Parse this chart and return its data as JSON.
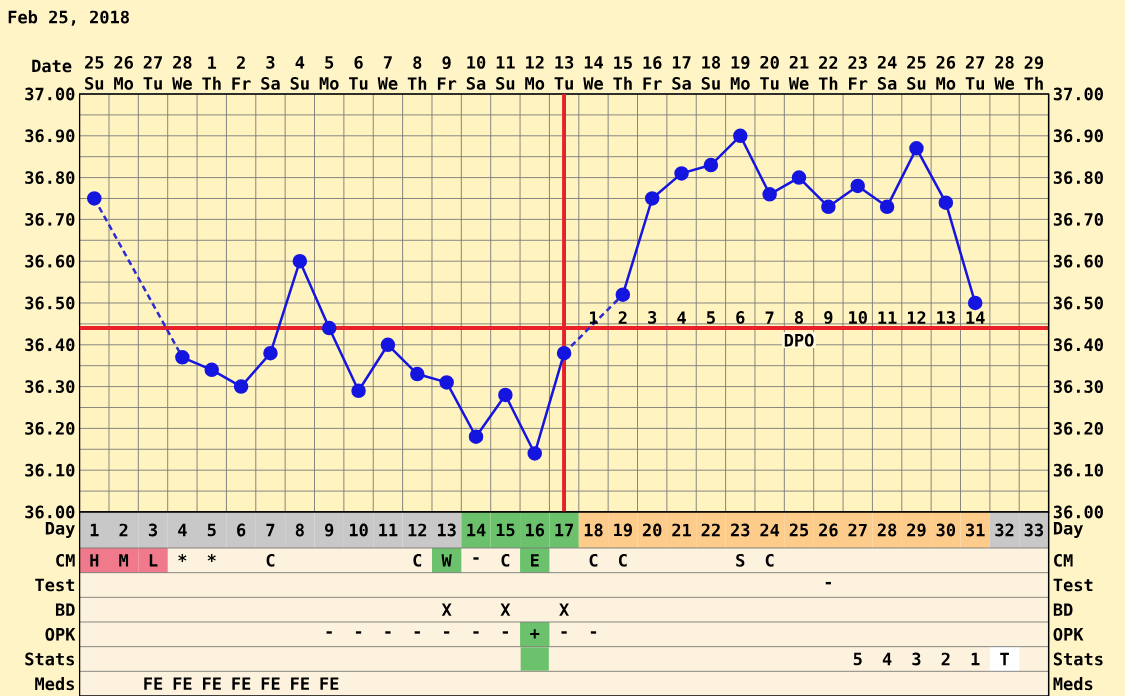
{
  "chart_data": [
    {
      "type": "line",
      "title": "Feb 25, 2018",
      "xlabel": "Date",
      "categories": [
        "25 Su",
        "26 Mo",
        "27 Tu",
        "28 We",
        "1 Th",
        "2 Fr",
        "3 Sa",
        "4 Su",
        "5 Mo",
        "6 Tu",
        "7 We",
        "8 Th",
        "9 Fr",
        "10 Sa",
        "11 Su",
        "12 Mo",
        "13 Tu",
        "14 We",
        "15 Th",
        "16 Fr",
        "17 Sa",
        "18 Su",
        "19 Mo",
        "20 Tu",
        "21 We",
        "22 Th",
        "23 Fr",
        "24 Sa",
        "25 Su",
        "26 Mo",
        "27 Tu",
        "28 We",
        "29 Th"
      ],
      "ylim": [
        36.0,
        37.0
      ],
      "yticks": [
        {
          "value": 36.0,
          "label": "36.00"
        },
        {
          "value": 36.05,
          "label": null
        },
        {
          "value": 36.1,
          "label": "36.10"
        },
        {
          "value": 36.15,
          "label": null
        },
        {
          "value": 36.2,
          "label": "36.20"
        },
        {
          "value": 36.25,
          "label": null
        },
        {
          "value": 36.3,
          "label": "36.30"
        },
        {
          "value": 36.35,
          "label": null
        },
        {
          "value": 36.4,
          "label": "36.40"
        },
        {
          "value": 36.45,
          "label": null
        },
        {
          "value": 36.5,
          "label": "36.50"
        },
        {
          "value": 36.55,
          "label": null
        },
        {
          "value": 36.6,
          "label": "36.60"
        },
        {
          "value": 36.65,
          "label": null
        },
        {
          "value": 36.7,
          "label": "36.70"
        },
        {
          "value": 36.75,
          "label": null
        },
        {
          "value": 36.8,
          "label": "36.80"
        },
        {
          "value": 36.85,
          "label": null
        },
        {
          "value": 36.9,
          "label": "36.90"
        },
        {
          "value": 36.95,
          "label": null
        },
        {
          "value": 37.0,
          "label": "37.00"
        }
      ],
      "y2lim": [
        36.0,
        37.0
      ],
      "y2ticks": [
        {
          "value": 36.0,
          "label": "36.00"
        },
        {
          "value": 36.05,
          "label": null
        },
        {
          "value": 36.1,
          "label": "36.10"
        },
        {
          "value": 36.15,
          "label": null
        },
        {
          "value": 36.2,
          "label": "36.20"
        },
        {
          "value": 36.25,
          "label": null
        },
        {
          "value": 36.3,
          "label": "36.30"
        },
        {
          "value": 36.35,
          "label": null
        },
        {
          "value": 36.4,
          "label": "36.40"
        },
        {
          "value": 36.45,
          "label": null
        },
        {
          "value": 36.5,
          "label": "36.50"
        },
        {
          "value": 36.55,
          "label": null
        },
        {
          "value": 36.6,
          "label": "36.60"
        },
        {
          "value": 36.65,
          "label": null
        },
        {
          "value": 36.7,
          "label": "36.70"
        },
        {
          "value": 36.75,
          "label": null
        },
        {
          "value": 36.8,
          "label": "36.80"
        },
        {
          "value": 36.85,
          "label": null
        },
        {
          "value": 36.9,
          "label": "36.90"
        },
        {
          "value": 36.95,
          "label": null
        },
        {
          "value": 37.0,
          "label": "37.00"
        }
      ],
      "grid": true,
      "marker": "circle",
      "line_style": "solid",
      "series": [
        {
          "color": "#1515E0",
          "values": [
            36.75,
            null,
            null,
            36.37,
            36.34,
            36.3,
            36.38,
            36.6,
            36.44,
            36.29,
            36.4,
            36.33,
            36.31,
            36.18,
            36.28,
            36.14,
            36.38,
            null,
            36.52,
            36.75,
            36.81,
            36.83,
            36.9,
            36.76,
            36.8,
            36.73,
            36.78,
            36.73,
            36.87,
            36.74,
            36.5,
            null,
            null
          ]
        },
        {
          "color": "#2B2BD2",
          "line_style": "dashed",
          "marker": "none",
          "values": [
            36.75,
            null,
            null,
            36.37,
            null,
            null,
            null,
            null,
            null,
            null,
            null,
            null,
            null,
            null,
            null,
            null,
            null,
            null,
            null,
            null,
            null,
            null,
            null,
            null,
            null,
            null,
            null,
            null,
            null,
            null,
            null,
            null,
            null
          ]
        },
        {
          "color": "#2B2BD2",
          "line_style": "dashed",
          "marker": "none",
          "values": [
            null,
            null,
            null,
            null,
            null,
            null,
            null,
            null,
            null,
            null,
            null,
            null,
            null,
            null,
            null,
            null,
            36.38,
            null,
            36.52,
            null,
            null,
            null,
            null,
            null,
            null,
            null,
            null,
            null,
            null,
            null,
            null,
            null,
            null
          ]
        }
      ],
      "ref_lines": [
        {
          "axis": "y",
          "value": 36.44,
          "color": "#E8202A",
          "label": "DPO"
        },
        {
          "axis": "x",
          "value": "13 Tu",
          "color": "#E8202A"
        }
      ],
      "annotations": [
        "1",
        "2",
        "3",
        "4",
        "5",
        "6",
        "7",
        "8",
        "9",
        "10",
        "11",
        "12",
        "13",
        "14"
      ]
    },
    {
      "type": "heatmap",
      "grid": true,
      "categories": [
        null,
        null,
        null,
        null,
        null,
        null,
        null,
        null,
        null,
        null,
        null,
        null,
        null,
        null,
        null,
        null,
        null,
        null,
        null,
        null,
        null,
        null,
        null,
        null,
        null,
        null,
        null,
        null,
        null,
        null,
        null,
        null,
        null
      ],
      "y_categories": [
        "Day",
        "CM",
        "Test",
        "BD",
        "OPK",
        "Stats",
        "Meds"
      ],
      "y2_categories": [
        "Day",
        "CM",
        "Test",
        "BD",
        "OPK",
        "Stats",
        "Meds"
      ],
      "cells": [
        [
          null,
          null,
          null,
          null,
          null,
          null,
          null,
          null,
          null,
          null,
          null,
          null,
          null,
          null,
          null,
          null,
          null,
          null,
          null,
          null,
          null,
          null,
          null,
          null,
          null,
          null,
          null,
          null,
          null,
          null,
          null,
          null,
          null
        ],
        [
          null,
          null,
          null,
          null,
          null,
          null,
          null,
          null,
          null,
          null,
          null,
          null,
          null,
          null,
          null,
          null,
          null,
          null,
          null,
          null,
          null,
          null,
          null,
          null,
          null,
          null,
          null,
          null,
          null,
          null,
          null,
          null,
          null
        ],
        [
          null,
          null,
          null,
          null,
          null,
          null,
          null,
          null,
          null,
          null,
          null,
          null,
          null,
          null,
          null,
          null,
          null,
          null,
          null,
          null,
          null,
          null,
          null,
          null,
          null,
          null,
          null,
          null,
          null,
          null,
          null,
          null,
          null
        ],
        [
          null,
          null,
          null,
          null,
          null,
          null,
          null,
          null,
          null,
          null,
          null,
          null,
          null,
          null,
          null,
          null,
          null,
          null,
          null,
          null,
          null,
          null,
          null,
          null,
          null,
          null,
          null,
          null,
          null,
          null,
          null,
          null,
          null
        ],
        [
          null,
          null,
          null,
          null,
          null,
          null,
          null,
          null,
          null,
          null,
          null,
          null,
          null,
          null,
          null,
          null,
          null,
          null,
          null,
          null,
          null,
          null,
          null,
          null,
          null,
          null,
          null,
          null,
          null,
          null,
          null,
          null,
          null
        ],
        [
          null,
          null,
          null,
          null,
          null,
          null,
          null,
          null,
          null,
          null,
          null,
          null,
          null,
          null,
          null,
          null,
          null,
          null,
          null,
          null,
          null,
          null,
          null,
          null,
          null,
          null,
          null,
          null,
          null,
          null,
          null,
          null,
          null
        ],
        [
          null,
          null,
          null,
          null,
          null,
          null,
          null,
          null,
          null,
          null,
          null,
          null,
          null,
          null,
          null,
          null,
          null,
          null,
          null,
          null,
          null,
          null,
          null,
          null,
          null,
          null,
          null,
          null,
          null,
          null,
          null,
          null,
          null
        ]
      ],
      "cell_labels": [
        [
          "1",
          "2",
          "3",
          "4",
          "5",
          "6",
          "7",
          "8",
          "9",
          "10",
          "11",
          "12",
          "13",
          "14",
          "15",
          "16",
          "17",
          "18",
          "19",
          "20",
          "21",
          "22",
          "23",
          "24",
          "25",
          "26",
          "27",
          "28",
          "29",
          "30",
          "31",
          "32",
          "33"
        ],
        [
          "H",
          "M",
          "L",
          "*",
          "*",
          null,
          "C",
          null,
          null,
          null,
          null,
          "C",
          "W",
          "-",
          "C",
          "E",
          null,
          "C",
          "C",
          null,
          null,
          null,
          "S",
          "C",
          null,
          null,
          null,
          null,
          null,
          null,
          null,
          null,
          null
        ],
        [
          null,
          null,
          null,
          null,
          null,
          null,
          null,
          null,
          null,
          null,
          null,
          null,
          null,
          null,
          null,
          null,
          null,
          null,
          null,
          null,
          null,
          null,
          null,
          null,
          null,
          "-",
          null,
          null,
          null,
          null,
          null,
          null,
          null
        ],
        [
          null,
          null,
          null,
          null,
          null,
          null,
          null,
          null,
          null,
          null,
          null,
          null,
          "X",
          null,
          "X",
          null,
          "X",
          null,
          null,
          null,
          null,
          null,
          null,
          null,
          null,
          null,
          null,
          null,
          null,
          null,
          null,
          null,
          null
        ],
        [
          null,
          null,
          null,
          null,
          null,
          null,
          null,
          null,
          "-",
          "-",
          "-",
          "-",
          "-",
          "-",
          "-",
          "+",
          "-",
          "-",
          null,
          null,
          null,
          null,
          null,
          null,
          null,
          null,
          null,
          null,
          null,
          null,
          null,
          null,
          null
        ],
        [
          null,
          null,
          null,
          null,
          null,
          null,
          null,
          null,
          null,
          null,
          null,
          null,
          null,
          null,
          null,
          null,
          null,
          null,
          null,
          null,
          null,
          null,
          null,
          null,
          null,
          null,
          "5",
          "4",
          "3",
          "2",
          "1",
          "T",
          null
        ],
        [
          null,
          null,
          "FE",
          "FE",
          "FE",
          "FE",
          "FE",
          "FE",
          "FE",
          null,
          null,
          null,
          null,
          null,
          null,
          null,
          null,
          null,
          null,
          null,
          null,
          null,
          null,
          null,
          null,
          null,
          null,
          null,
          null,
          null,
          null,
          null,
          null
        ]
      ],
      "colors": [
        [
          "#C8C8C8",
          "#C8C8C8",
          "#C8C8C8",
          "#C8C8C8",
          "#C8C8C8",
          "#C8C8C8",
          "#C8C8C8",
          "#C8C8C8",
          "#C8C8C8",
          "#C8C8C8",
          "#C8C8C8",
          "#C8C8C8",
          "#C8C8C8",
          "#6CC26C",
          "#6CC26C",
          "#6CC26C",
          "#6CC26C",
          "#FDCB8A",
          "#FDCB8A",
          "#FDCB8A",
          "#FDCB8A",
          "#FDCB8A",
          "#FDCB8A",
          "#FDCB8A",
          "#FDCB8A",
          "#FDCB8A",
          "#FDCB8A",
          "#FDCB8A",
          "#FDCB8A",
          "#FDCB8A",
          "#FDCB8A",
          "#C8C8C8",
          "#C8C8C8"
        ],
        [
          "#F07A8C",
          "#F07A8C",
          "#F07A8C",
          null,
          null,
          null,
          null,
          null,
          null,
          null,
          null,
          null,
          "#6CC26C",
          null,
          null,
          "#6CC26C",
          null,
          null,
          null,
          null,
          null,
          null,
          null,
          null,
          null,
          null,
          null,
          null,
          null,
          null,
          null,
          null,
          null
        ],
        [
          null,
          null,
          null,
          null,
          null,
          null,
          null,
          null,
          null,
          null,
          null,
          null,
          null,
          null,
          null,
          null,
          null,
          null,
          null,
          null,
          null,
          null,
          null,
          null,
          null,
          null,
          null,
          null,
          null,
          null,
          null,
          null,
          null
        ],
        [
          null,
          null,
          null,
          null,
          null,
          null,
          null,
          null,
          null,
          null,
          null,
          null,
          null,
          null,
          null,
          null,
          null,
          null,
          null,
          null,
          null,
          null,
          null,
          null,
          null,
          null,
          null,
          null,
          null,
          null,
          null,
          null,
          null
        ],
        [
          null,
          null,
          null,
          null,
          null,
          null,
          null,
          null,
          null,
          null,
          null,
          null,
          null,
          null,
          null,
          "#6CC26C",
          null,
          null,
          null,
          null,
          null,
          null,
          null,
          null,
          null,
          null,
          null,
          null,
          null,
          null,
          null,
          null,
          null
        ],
        [
          null,
          null,
          null,
          null,
          null,
          null,
          null,
          null,
          null,
          null,
          null,
          null,
          null,
          null,
          null,
          "#6CC26C",
          null,
          null,
          null,
          null,
          null,
          null,
          null,
          null,
          null,
          null,
          null,
          null,
          null,
          null,
          null,
          "#FFFFFF",
          null
        ],
        [
          null,
          null,
          null,
          null,
          null,
          null,
          null,
          null,
          null,
          null,
          null,
          null,
          null,
          null,
          null,
          null,
          null,
          null,
          null,
          null,
          null,
          null,
          null,
          null,
          null,
          null,
          null,
          null,
          null,
          null,
          null,
          null,
          null
        ]
      ]
    }
  ]
}
